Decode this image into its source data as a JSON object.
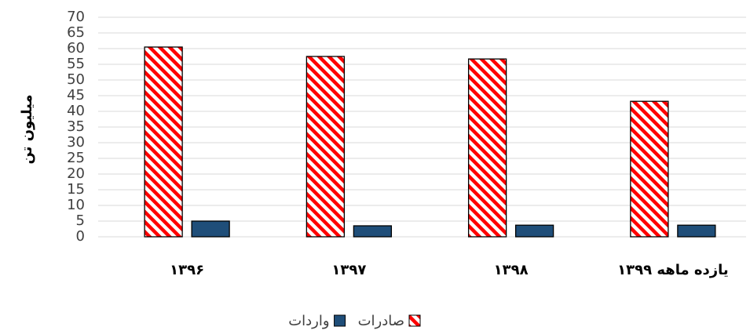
{
  "chart_data": {
    "type": "bar",
    "categories": [
      "۱۳۹۶",
      "۱۳۹۷",
      "۱۳۹۸",
      "یازده ماهه ۱۳۹۹"
    ],
    "y_label": "میلیون تن",
    "series": [
      {
        "name": "صادرات",
        "color": "#ff0000",
        "pattern": "hatch",
        "values": [
          60.5,
          57.5,
          56.7,
          43.2
        ]
      },
      {
        "name": "واردات",
        "color": "#1f4e79",
        "values": [
          5,
          3.5,
          3.7,
          3.7
        ]
      }
    ],
    "ylim": [
      0,
      70
    ],
    "yticks": [
      0,
      5,
      10,
      15,
      20,
      25,
      30,
      35,
      40,
      45,
      50,
      55,
      60,
      65,
      70
    ],
    "grid": true,
    "legend": "bottom"
  }
}
